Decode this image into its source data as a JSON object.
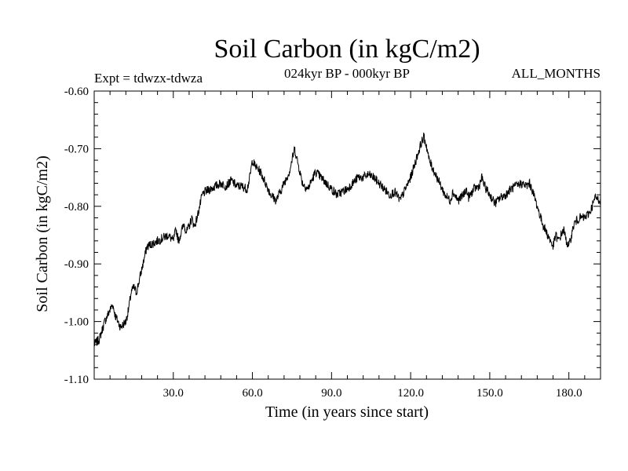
{
  "chart_data": {
    "type": "line",
    "title": "Soil Carbon (in kgC/m2)",
    "subtitle_left": "Expt = tdwzx-tdwza",
    "subtitle_center": "024kyr BP - 000kyr BP",
    "subtitle_right": "ALL_MONTHS",
    "xlabel": "Time (in years since start)",
    "ylabel": "Soil Carbon (in kgC/m2)",
    "xlim": [
      0,
      192
    ],
    "ylim": [
      -1.1,
      -0.6
    ],
    "xticks": [
      30,
      60,
      90,
      120,
      150,
      180
    ],
    "xtick_labels": [
      "30.0",
      "60.0",
      "90.0",
      "120.0",
      "150.0",
      "180.0"
    ],
    "yticks": [
      -0.6,
      -0.7,
      -0.8,
      -0.9,
      -1.0,
      -1.1
    ],
    "ytick_labels": [
      "-0.60",
      "-0.70",
      "-0.80",
      "-0.90",
      "-1.00",
      "-1.10"
    ],
    "series": [
      {
        "name": "Soil Carbon",
        "color": "#000000",
        "x": [
          0,
          2,
          4,
          6,
          7,
          8,
          10,
          12,
          13,
          14,
          15,
          16,
          17,
          18,
          20,
          22,
          24,
          26,
          28,
          30,
          31,
          32,
          34,
          35,
          36,
          37,
          38,
          39,
          40,
          41,
          42,
          44,
          46,
          48,
          50,
          52,
          54,
          56,
          58,
          59,
          60,
          61,
          63,
          65,
          67,
          69,
          70,
          72,
          74,
          75,
          76,
          77,
          78,
          79,
          81,
          82,
          84,
          86,
          88,
          90,
          92,
          94,
          96,
          98,
          100,
          102,
          104,
          106,
          108,
          110,
          112,
          114,
          116,
          118,
          120,
          122,
          124,
          125,
          126,
          127,
          129,
          131,
          133,
          135,
          136,
          138,
          140,
          141,
          142,
          144,
          146,
          147,
          148,
          150,
          152,
          154,
          156,
          158,
          160,
          162,
          164,
          165,
          166,
          168,
          170,
          171,
          173,
          174,
          175,
          176,
          178,
          179,
          180,
          182,
          184,
          186,
          188,
          190,
          192
        ],
        "y": [
          -1.04,
          -1.03,
          -1.0,
          -0.98,
          -0.97,
          -0.99,
          -1.01,
          -1.0,
          -0.98,
          -0.95,
          -0.94,
          -0.95,
          -0.93,
          -0.91,
          -0.87,
          -0.865,
          -0.86,
          -0.855,
          -0.85,
          -0.86,
          -0.84,
          -0.86,
          -0.83,
          -0.845,
          -0.835,
          -0.82,
          -0.835,
          -0.82,
          -0.8,
          -0.78,
          -0.775,
          -0.77,
          -0.765,
          -0.76,
          -0.765,
          -0.755,
          -0.765,
          -0.765,
          -0.77,
          -0.75,
          -0.72,
          -0.73,
          -0.74,
          -0.76,
          -0.78,
          -0.79,
          -0.78,
          -0.76,
          -0.74,
          -0.72,
          -0.7,
          -0.72,
          -0.74,
          -0.76,
          -0.77,
          -0.76,
          -0.74,
          -0.75,
          -0.76,
          -0.77,
          -0.78,
          -0.775,
          -0.77,
          -0.76,
          -0.75,
          -0.75,
          -0.745,
          -0.75,
          -0.76,
          -0.77,
          -0.78,
          -0.775,
          -0.79,
          -0.77,
          -0.75,
          -0.72,
          -0.69,
          -0.68,
          -0.695,
          -0.72,
          -0.74,
          -0.76,
          -0.78,
          -0.79,
          -0.775,
          -0.79,
          -0.78,
          -0.77,
          -0.785,
          -0.77,
          -0.765,
          -0.75,
          -0.765,
          -0.78,
          -0.795,
          -0.785,
          -0.78,
          -0.77,
          -0.765,
          -0.76,
          -0.765,
          -0.76,
          -0.77,
          -0.8,
          -0.83,
          -0.84,
          -0.86,
          -0.87,
          -0.85,
          -0.86,
          -0.84,
          -0.86,
          -0.87,
          -0.83,
          -0.82,
          -0.82,
          -0.81,
          -0.785,
          -0.79
        ]
      }
    ]
  }
}
